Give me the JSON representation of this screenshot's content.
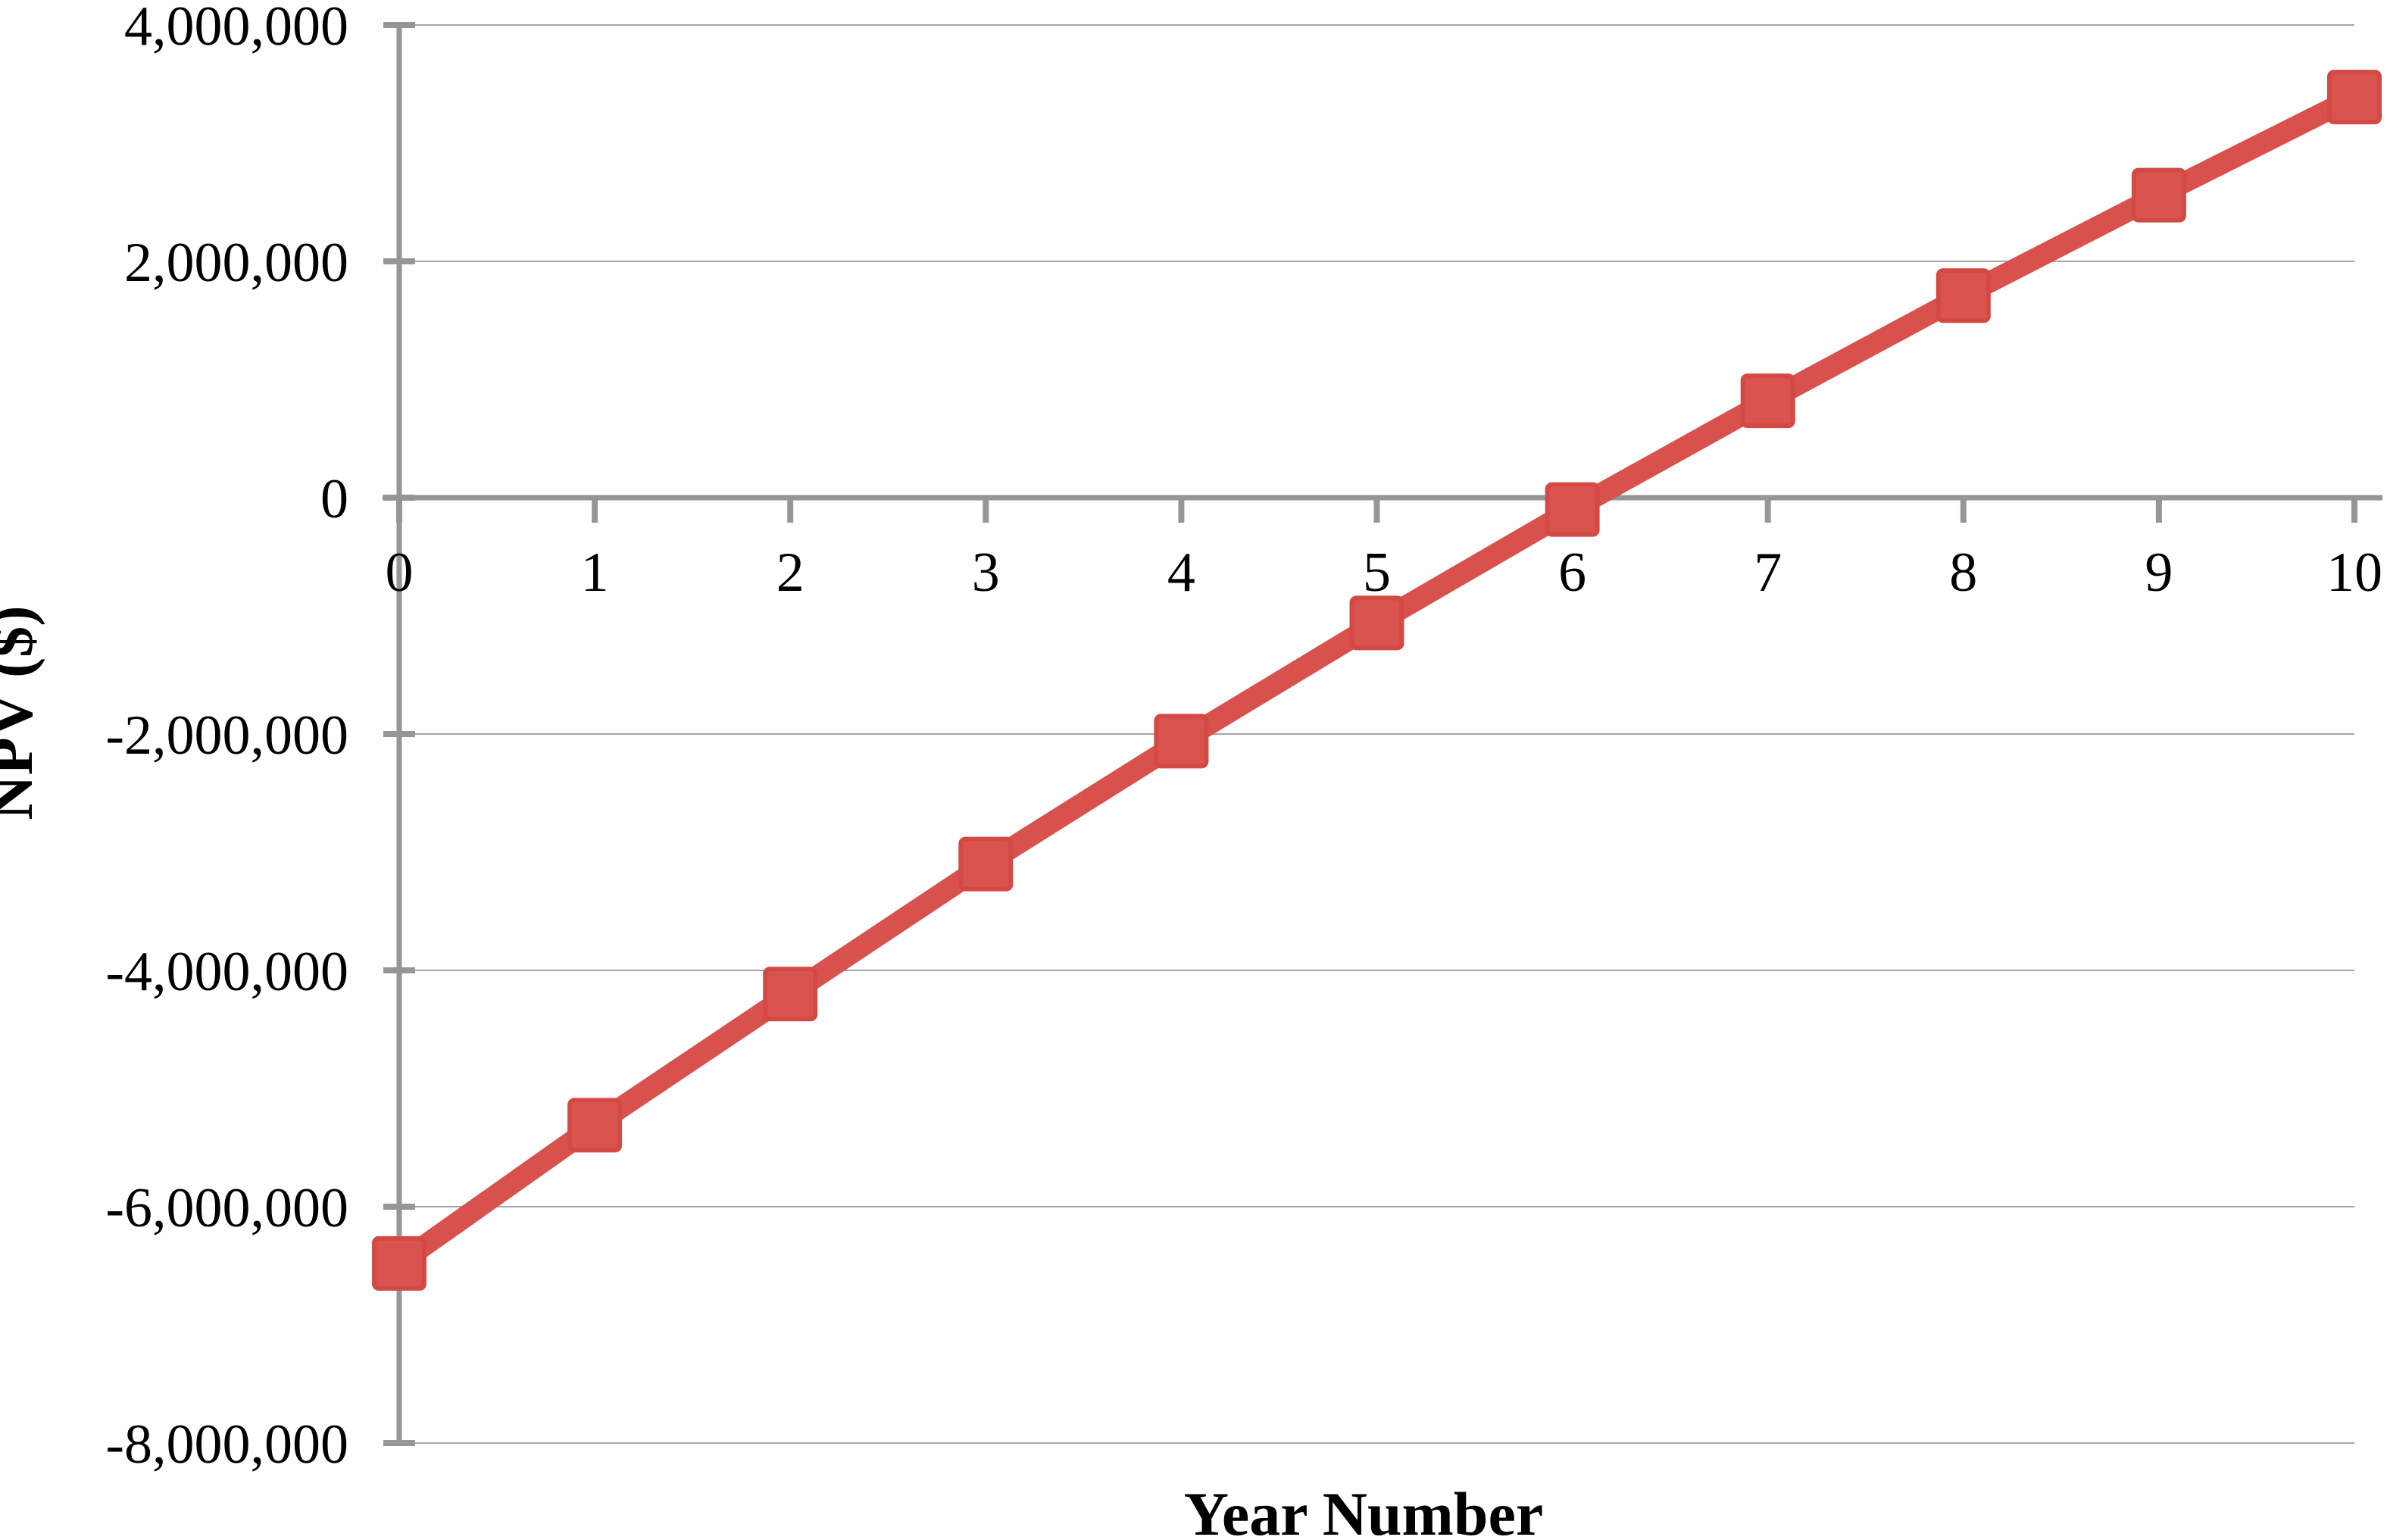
{
  "chart_data": {
    "type": "line",
    "title": "",
    "xlabel": "Year Number",
    "ylabel": "NPV ($)",
    "x": [
      0,
      1,
      2,
      3,
      4,
      5,
      6,
      7,
      8,
      9,
      10
    ],
    "series": [
      {
        "name": "NPV",
        "values": [
          -6480000,
          -5310000,
          -4200000,
          -3100000,
          -2060000,
          -1060000,
          -100000,
          820000,
          1710000,
          2560000,
          3390000
        ]
      }
    ],
    "xlim": [
      0,
      10
    ],
    "ylim": [
      -8000000,
      4000000
    ],
    "x_ticks": [
      0,
      1,
      2,
      3,
      4,
      5,
      6,
      7,
      8,
      9,
      10
    ],
    "x_tick_labels": [
      "0",
      "1",
      "2",
      "3",
      "4",
      "5",
      "6",
      "7",
      "8",
      "9",
      "10"
    ],
    "y_ticks": [
      4000000,
      2000000,
      0,
      -2000000,
      -4000000,
      -6000000,
      -8000000
    ],
    "y_tick_labels": [
      "4,000,000",
      "2,000,000",
      "0",
      "-2,000,000",
      "-4,000,000",
      "-6,000,000",
      "-8,000,000"
    ],
    "grid": true,
    "legend": "none",
    "marker": "square",
    "colors": {
      "line": "#D8514C",
      "marker_fill": "#D9544F",
      "marker_stroke": "#D34943",
      "gridline": "#A6A6A6",
      "axis": "#969696",
      "text": "#000000",
      "background": "#FFFFFF"
    }
  }
}
